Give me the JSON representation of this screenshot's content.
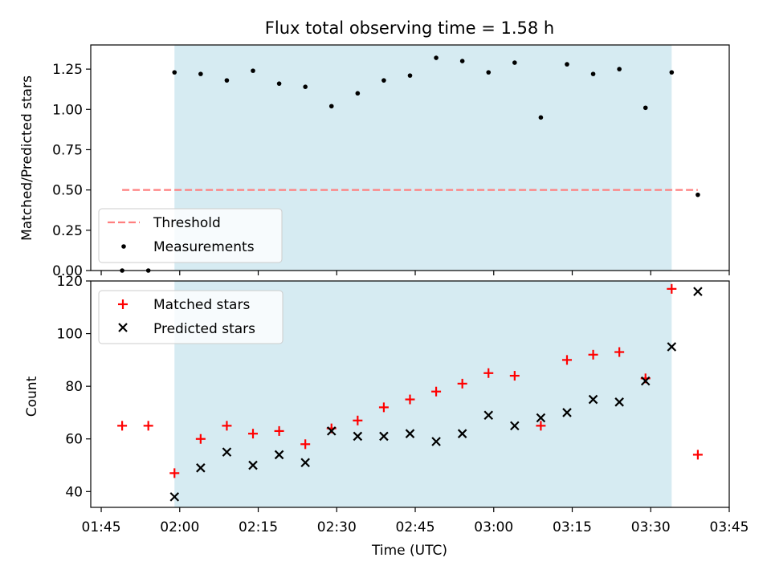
{
  "title": "Flux total observing time = 1.58 h",
  "colors": {
    "shade": "#add8e6",
    "threshold": "#ff7f7f",
    "matched": "#ff0000",
    "predicted": "#000000",
    "measurement": "#000000"
  },
  "chart_data": [
    {
      "type": "scatter",
      "ylabel": "Matched/Predicted stars",
      "xlim": [
        "01:43",
        "03:45"
      ],
      "ylim": [
        0,
        1.4
      ],
      "yticks": [
        "0.00",
        "0.25",
        "0.50",
        "0.75",
        "1.00",
        "1.25"
      ],
      "ytick_values": [
        0,
        0.25,
        0.5,
        0.75,
        1.0,
        1.25
      ],
      "shaded_span": [
        "01:59",
        "03:34"
      ],
      "legend_position": "lower-left",
      "threshold": {
        "name": "Threshold",
        "value": 0.5,
        "x_range": [
          "01:49",
          "03:39"
        ]
      },
      "series": [
        {
          "name": "Measurements",
          "x": [
            "01:49",
            "01:54",
            "01:59",
            "02:04",
            "02:09",
            "02:14",
            "02:19",
            "02:24",
            "02:29",
            "02:34",
            "02:39",
            "02:44",
            "02:49",
            "02:54",
            "02:59",
            "03:04",
            "03:09",
            "03:14",
            "03:19",
            "03:24",
            "03:29",
            "03:34",
            "03:39"
          ],
          "y": [
            0.0,
            0.0,
            1.23,
            1.22,
            1.18,
            1.24,
            1.16,
            1.14,
            1.02,
            1.1,
            1.18,
            1.21,
            1.32,
            1.3,
            1.23,
            1.29,
            0.95,
            1.28,
            1.22,
            1.25,
            1.01,
            1.23,
            0.47
          ]
        }
      ]
    },
    {
      "type": "scatter",
      "xlabel": "Time (UTC)",
      "ylabel": "Count",
      "xlim": [
        "01:43",
        "03:45"
      ],
      "ylim": [
        34,
        120
      ],
      "xticks": [
        "01:45",
        "02:00",
        "02:15",
        "02:30",
        "02:45",
        "03:00",
        "03:15",
        "03:30",
        "03:45"
      ],
      "yticks": [
        "40",
        "60",
        "80",
        "100",
        "120"
      ],
      "ytick_values": [
        40,
        60,
        80,
        100,
        120
      ],
      "shaded_span": [
        "01:59",
        "03:34"
      ],
      "legend_position": "upper-left",
      "series": [
        {
          "name": "Matched stars",
          "marker": "plus",
          "x": [
            "01:49",
            "01:54",
            "01:59",
            "02:04",
            "02:09",
            "02:14",
            "02:19",
            "02:24",
            "02:29",
            "02:34",
            "02:39",
            "02:44",
            "02:49",
            "02:54",
            "02:59",
            "03:04",
            "03:09",
            "03:14",
            "03:19",
            "03:24",
            "03:29",
            "03:34",
            "03:39"
          ],
          "y": [
            65,
            65,
            47,
            60,
            65,
            62,
            63,
            58,
            64,
            67,
            72,
            75,
            78,
            81,
            85,
            84,
            65,
            90,
            92,
            93,
            83,
            117,
            54
          ]
        },
        {
          "name": "Predicted stars",
          "marker": "x",
          "x": [
            "01:59",
            "02:04",
            "02:09",
            "02:14",
            "02:19",
            "02:24",
            "02:29",
            "02:34",
            "02:39",
            "02:44",
            "02:49",
            "02:54",
            "02:59",
            "03:04",
            "03:09",
            "03:14",
            "03:19",
            "03:24",
            "03:29",
            "03:34",
            "03:39"
          ],
          "y": [
            38,
            49,
            55,
            50,
            54,
            51,
            63,
            61,
            61,
            62,
            59,
            62,
            69,
            65,
            68,
            70,
            75,
            74,
            82,
            95,
            116
          ]
        }
      ]
    }
  ]
}
